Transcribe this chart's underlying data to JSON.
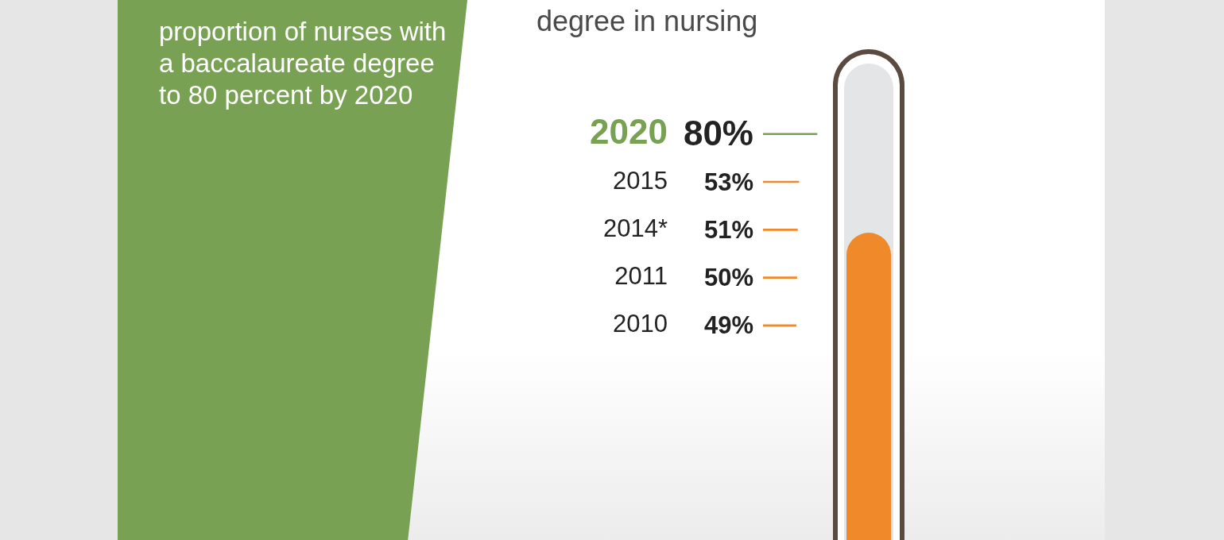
{
  "chart_data": {
    "type": "bar",
    "orientation": "horizontal",
    "title": "degree in nursing",
    "annotations": [
      "proportion of nurses with a baccalaureate degree to 80 percent by 2020"
    ],
    "categories": [
      "2020",
      "2015",
      "2014*",
      "2011",
      "2010"
    ],
    "values": [
      80,
      53,
      51,
      50,
      49
    ],
    "value_labels": [
      "80%",
      "53%",
      "51%",
      "50%",
      "49%"
    ],
    "colors": [
      "#78a153",
      "#f0892a",
      "#f0892a",
      "#f0892a",
      "#f0892a"
    ],
    "tick_labels": "y"
  }
}
